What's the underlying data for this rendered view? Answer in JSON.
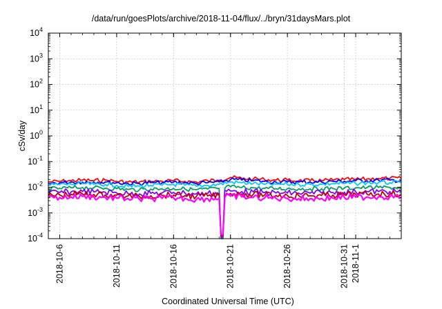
{
  "chart_data": {
    "type": "line",
    "title": "/data/run/goesPlots/archive/2018-11-04/flux/../bryn/31daysMars.plot",
    "xlabel": "Coordinated Universal Time (UTC)",
    "ylabel": "cSv/day",
    "yscale": "log",
    "ylim": [
      0.0001,
      10000
    ],
    "xlim": [
      "2018-10-05 00:00",
      "2018-11-05 00:00"
    ],
    "grid": true,
    "legend": "none",
    "yticks": [
      {
        "value": 0.0001,
        "base": "10",
        "exp": "-4"
      },
      {
        "value": 0.001,
        "base": "10",
        "exp": "-3"
      },
      {
        "value": 0.01,
        "base": "10",
        "exp": "-2"
      },
      {
        "value": 0.1,
        "base": "10",
        "exp": "-1"
      },
      {
        "value": 1,
        "base": "10",
        "exp": "0"
      },
      {
        "value": 10,
        "base": "10",
        "exp": "1"
      },
      {
        "value": 100,
        "base": "10",
        "exp": "2"
      },
      {
        "value": 1000,
        "base": "10",
        "exp": "3"
      },
      {
        "value": 10000,
        "base": "10",
        "exp": "4"
      }
    ],
    "xticks": [
      {
        "date": "2018-10-06",
        "label": "2018-10-6"
      },
      {
        "date": "2018-10-11",
        "label": "2018-10-11"
      },
      {
        "date": "2018-10-16",
        "label": "2018-10-16"
      },
      {
        "date": "2018-10-21",
        "label": "2018-10-21"
      },
      {
        "date": "2018-10-26",
        "label": "2018-10-26"
      },
      {
        "date": "2018-10-31",
        "label": "2018-10-31"
      },
      {
        "date": "2018-11-01",
        "label": "2018-11-1"
      }
    ],
    "x": [
      "2018-10-05",
      "2018-10-06",
      "2018-10-07",
      "2018-10-08",
      "2018-10-09",
      "2018-10-10",
      "2018-10-11",
      "2018-10-12",
      "2018-10-13",
      "2018-10-14",
      "2018-10-15",
      "2018-10-16",
      "2018-10-17",
      "2018-10-18",
      "2018-10-19",
      "2018-10-20",
      "2018-10-21",
      "2018-10-22",
      "2018-10-23",
      "2018-10-24",
      "2018-10-25",
      "2018-10-26",
      "2018-10-27",
      "2018-10-28",
      "2018-10-29",
      "2018-10-30",
      "2018-10-31",
      "2018-11-01",
      "2018-11-02",
      "2018-11-03",
      "2018-11-04",
      "2018-11-05"
    ],
    "series": [
      {
        "color": "#ff0000",
        "values": [
          0.016,
          0.017,
          0.018,
          0.019,
          0.018,
          0.019,
          0.017,
          0.016,
          0.016,
          0.017,
          0.017,
          0.018,
          0.017,
          0.016,
          0.018,
          0.019,
          0.024,
          0.022,
          0.021,
          0.02,
          0.019,
          0.019,
          0.018,
          0.018,
          0.018,
          0.019,
          0.02,
          0.02,
          0.021,
          0.022,
          0.022,
          0.022
        ]
      },
      {
        "color": "#0000ff",
        "values": [
          0.014,
          0.015,
          0.016,
          0.016,
          0.016,
          0.016,
          0.015,
          0.014,
          0.014,
          0.015,
          0.015,
          0.016,
          0.015,
          0.014,
          0.015,
          0.016,
          0.02,
          0.019,
          0.018,
          0.017,
          0.016,
          0.016,
          0.016,
          0.016,
          0.016,
          0.017,
          0.017,
          0.018,
          0.018,
          0.019,
          0.019,
          0.018
        ]
      },
      {
        "color": "#00c8ff",
        "values": [
          0.012,
          0.013,
          0.013,
          0.014,
          0.013,
          0.013,
          0.012,
          0.011,
          0.011,
          0.012,
          0.012,
          0.013,
          0.012,
          0.011,
          0.012,
          0.013,
          0.016,
          0.015,
          0.014,
          0.013,
          0.013,
          0.013,
          0.013,
          0.013,
          0.013,
          0.014,
          0.014,
          0.014,
          0.015,
          0.015,
          0.015,
          0.015
        ]
      },
      {
        "color": "#00a060",
        "values": [
          0.0085,
          0.009,
          0.0095,
          0.0098,
          0.0095,
          0.0092,
          0.0088,
          0.0082,
          0.008,
          0.0085,
          0.0087,
          0.009,
          0.0086,
          0.008,
          0.0085,
          0.009,
          0.0105,
          0.0098,
          0.0095,
          0.009,
          0.0088,
          0.0088,
          0.0087,
          0.0087,
          0.0088,
          0.009,
          0.0092,
          0.0095,
          0.0097,
          0.0098,
          0.0098,
          0.0095
        ]
      },
      {
        "color": "#8000ff",
        "values": [
          0.006,
          0.0063,
          0.0066,
          0.0068,
          0.0066,
          0.0064,
          0.0061,
          0.0057,
          0.0055,
          0.0058,
          0.006,
          0.0063,
          0.006,
          0.0055,
          0.0058,
          0.006,
          0.0072,
          0.0068,
          0.0066,
          0.0062,
          0.006,
          0.006,
          0.0059,
          0.0059,
          0.006,
          0.0062,
          0.0064,
          0.0066,
          0.0068,
          0.0068,
          0.0068,
          0.0066
        ]
      },
      {
        "color": "#c00000",
        "values": [
          0.0048,
          0.005,
          0.0053,
          0.0055,
          0.0053,
          0.0051,
          0.0049,
          0.0046,
          0.0044,
          0.0047,
          0.0048,
          0.005,
          0.0048,
          0.0044,
          0.0046,
          0.0048,
          0.0058,
          0.0055,
          0.0053,
          0.005,
          0.0048,
          0.0048,
          0.0047,
          0.0047,
          0.0048,
          0.005,
          0.0051,
          0.0053,
          0.0054,
          0.0055,
          0.0055,
          0.0053
        ]
      },
      {
        "color": "#ff00ff",
        "values": [
          0.0038,
          0.004,
          0.0042,
          0.0044,
          0.0042,
          0.004,
          0.0038,
          0.0036,
          0.0034,
          0.0036,
          0.0037,
          0.0039,
          0.0037,
          0.0034,
          0.0036,
          0.0037,
          0.0045,
          0.0042,
          0.004,
          0.0038,
          0.0037,
          0.0037,
          0.0036,
          0.0036,
          0.0037,
          0.0038,
          0.004,
          0.0041,
          0.0042,
          0.0043,
          0.0043,
          0.0041
        ]
      }
    ],
    "dip": {
      "date": "2018-10-20 06:00",
      "values": [
        0.005,
        0.0001
      ]
    },
    "colors": {
      "axis": "#000000",
      "grid": "#bbbbbb",
      "background": "#ffffff"
    }
  }
}
